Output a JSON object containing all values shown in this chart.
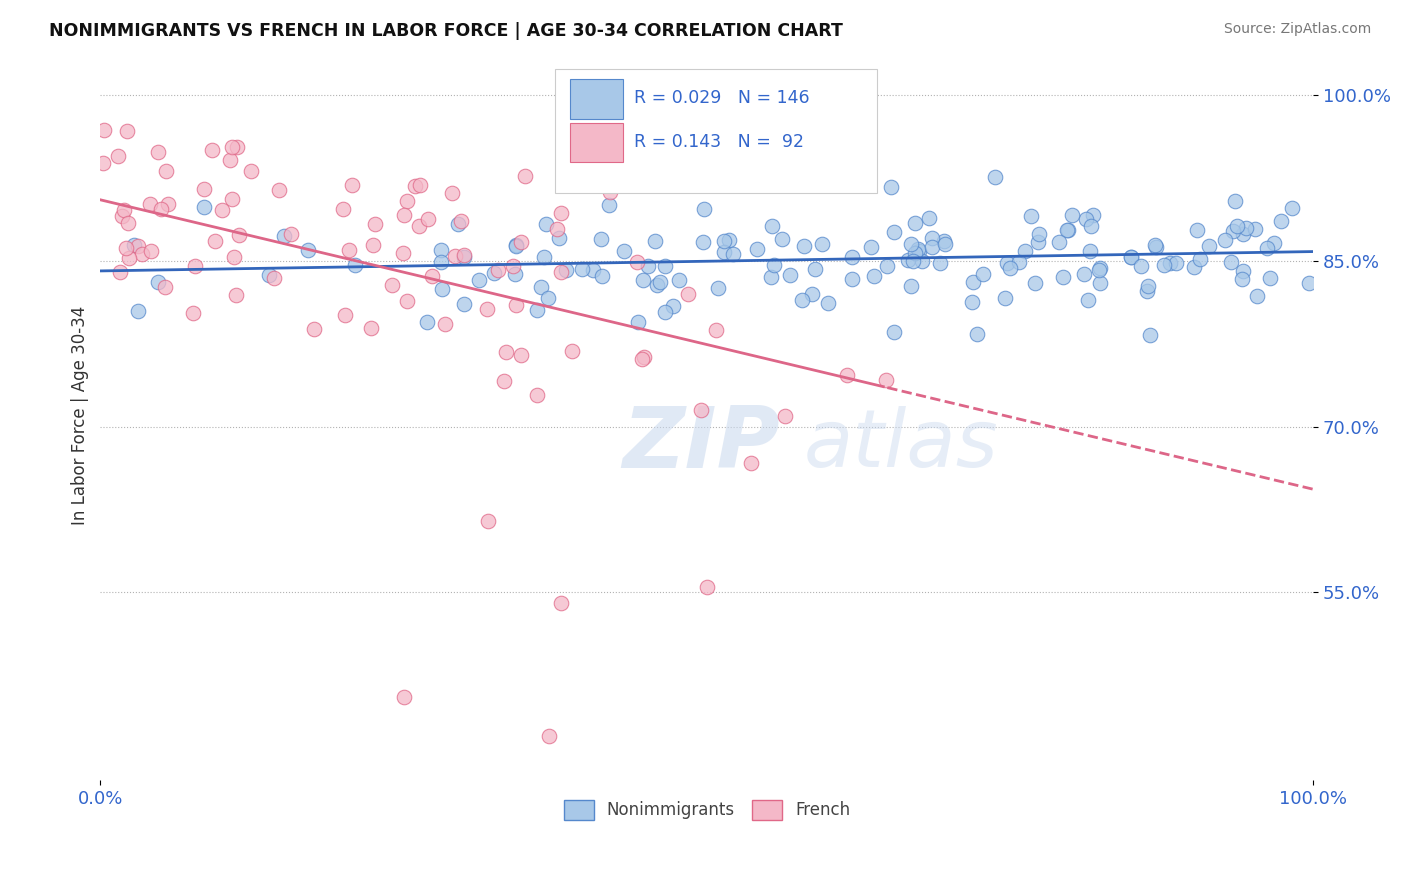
{
  "title": "NONIMMIGRANTS VS FRENCH IN LABOR FORCE | AGE 30-34 CORRELATION CHART",
  "source": "Source: ZipAtlas.com",
  "ylabel": "In Labor Force | Age 30-34",
  "ytick_labels": [
    "55.0%",
    "70.0%",
    "85.0%",
    "100.0%"
  ],
  "ytick_values": [
    0.55,
    0.7,
    0.85,
    1.0
  ],
  "xrange": [
    0.0,
    1.0
  ],
  "yrange": [
    0.38,
    1.04
  ],
  "blue_color": "#a8c8e8",
  "pink_color": "#f4b8c8",
  "blue_edge": "#5588cc",
  "pink_edge": "#e06888",
  "trend_blue": "#3366bb",
  "trend_pink": "#dd6688",
  "legend_R_blue": "0.029",
  "legend_N_blue": "146",
  "legend_R_pink": "0.143",
  "legend_N_pink": "92",
  "watermark_zip": "ZIP",
  "watermark_atlas": "atlas",
  "axis_color": "#3366cc",
  "ylabel_color": "#333333"
}
